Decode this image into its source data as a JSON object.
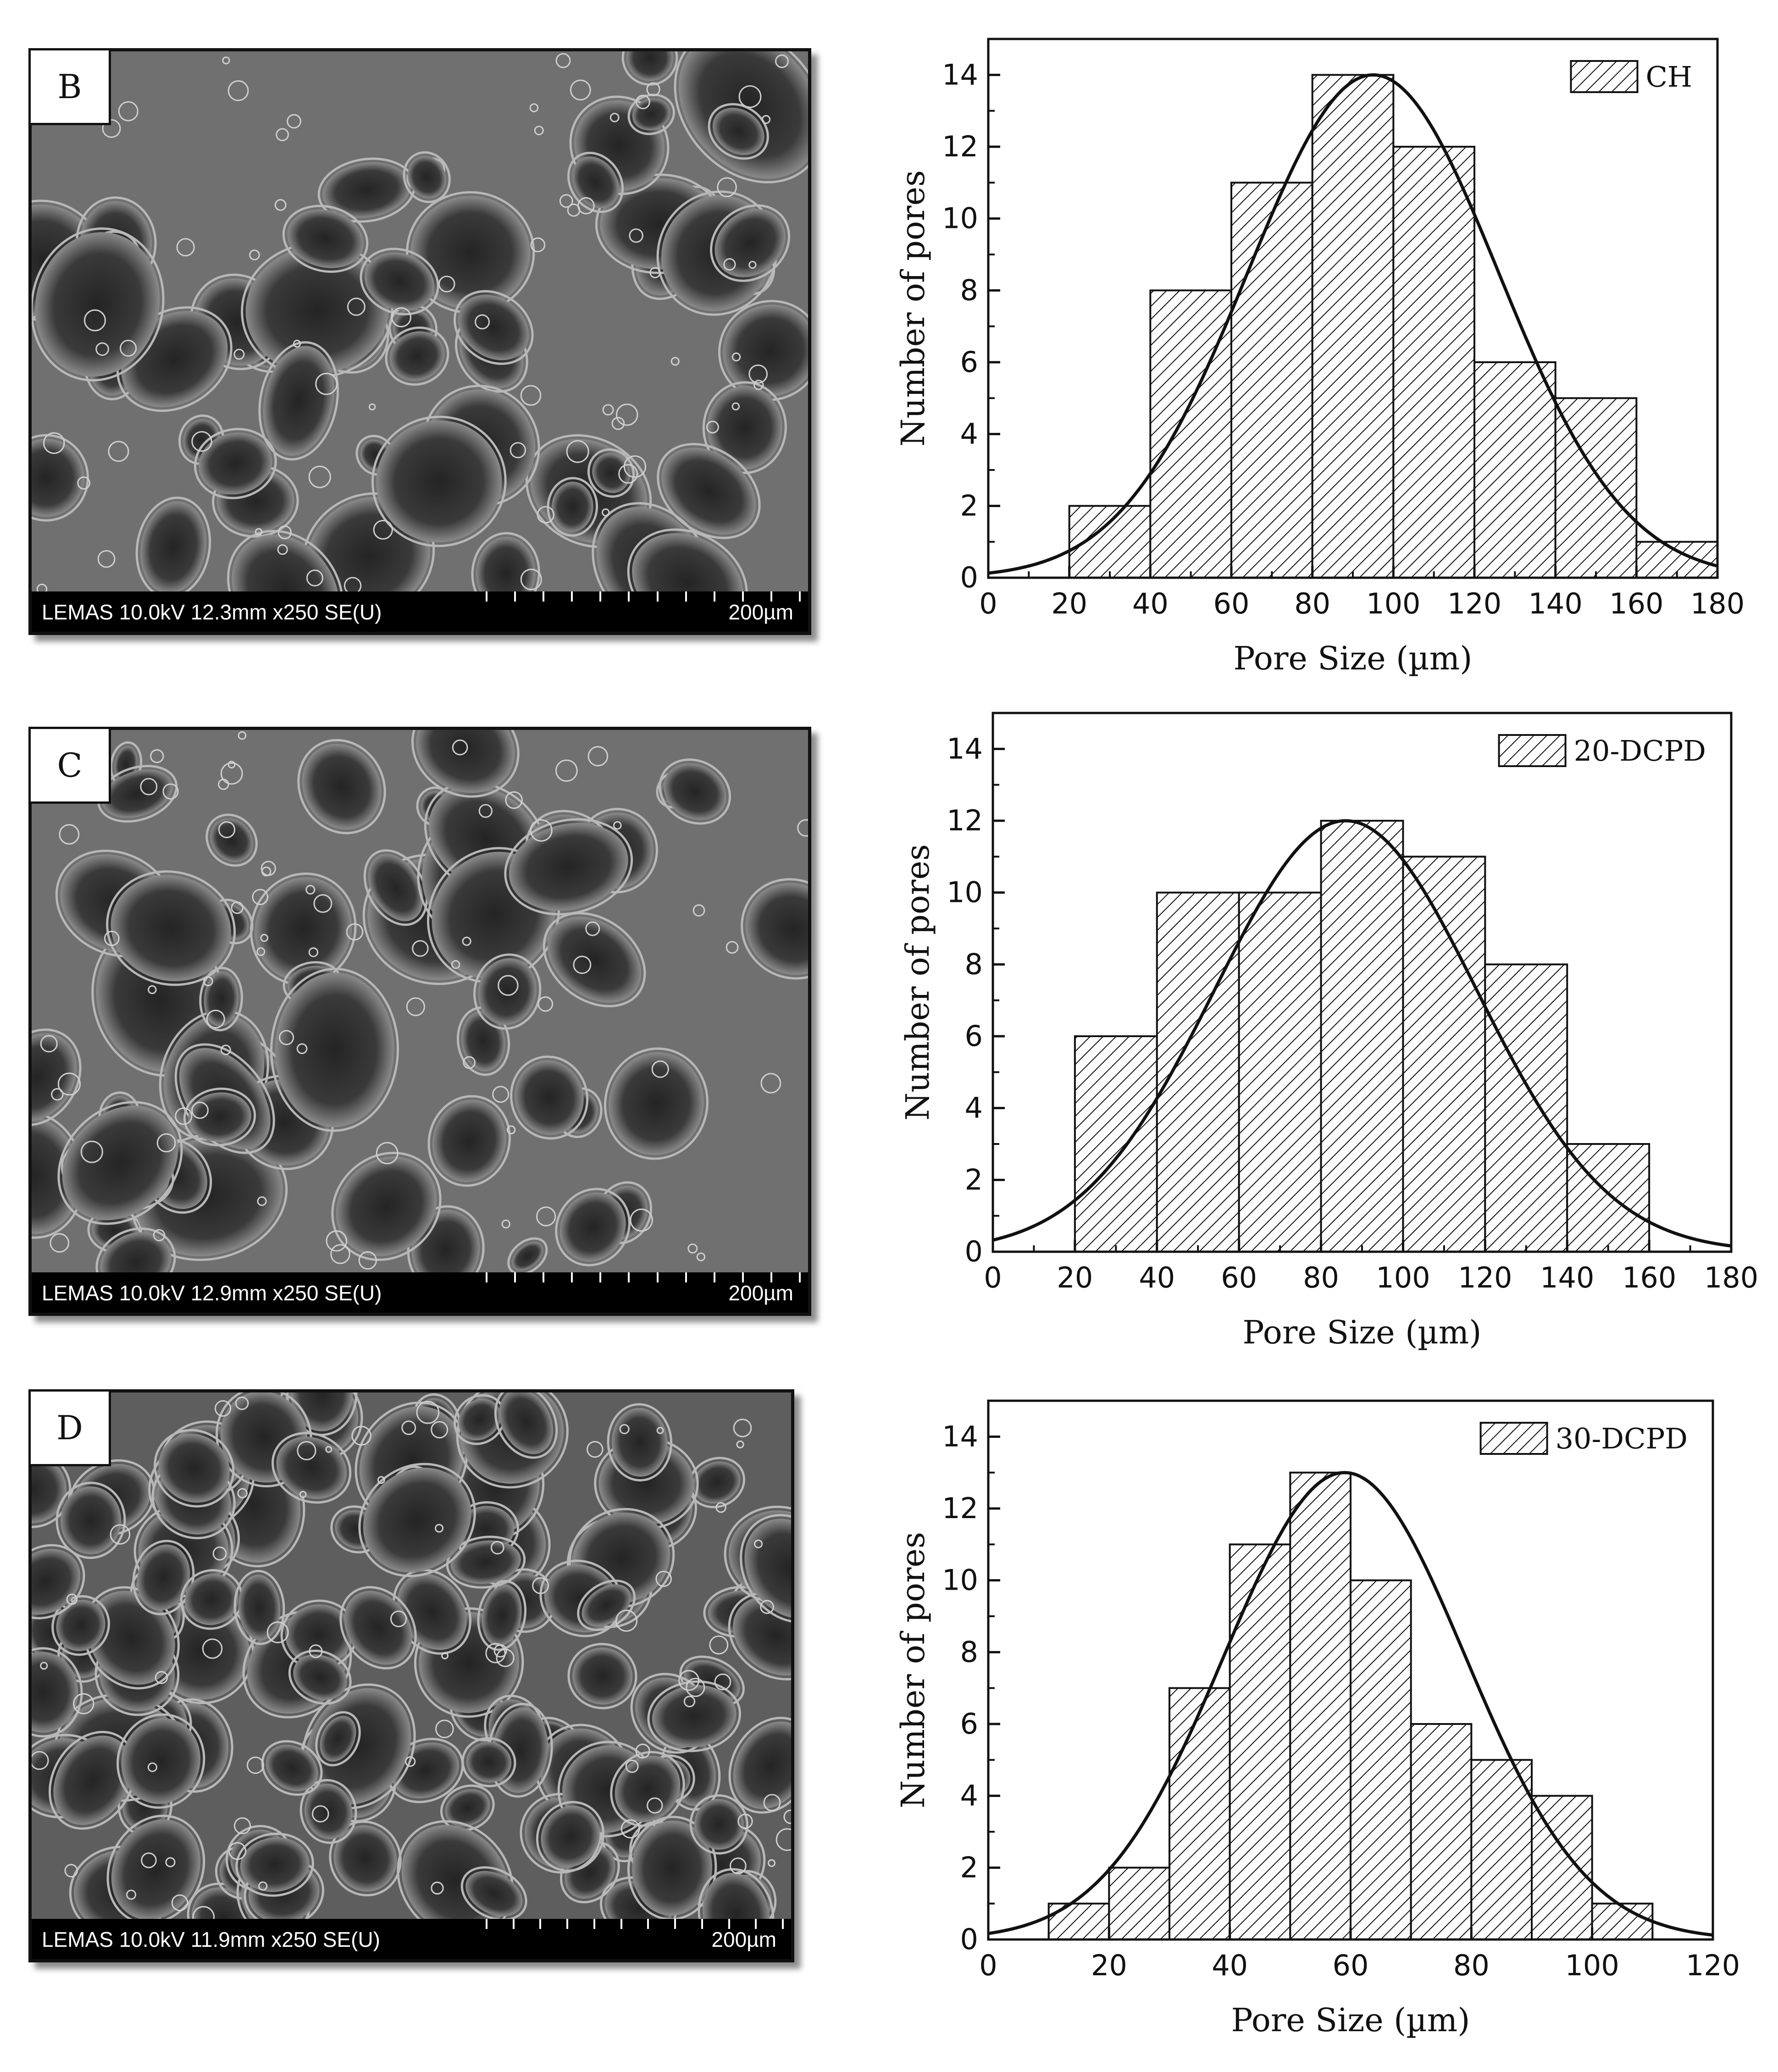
{
  "panels": [
    {
      "letter": "B",
      "sem_caption": "LEMAS 10.0kV 12.3mm x250 SE(U)",
      "scale_text": "200µm"
    },
    {
      "letter": "C",
      "sem_caption": "LEMAS 10.0kV 12.9mm x250 SE(U)",
      "scale_text": "200µm"
    },
    {
      "letter": "D",
      "sem_caption": "LEMAS 10.0kV 11.9mm x250 SE(U)",
      "scale_text": "200µm"
    }
  ],
  "chart_data": [
    {
      "type": "bar",
      "legend": "CH",
      "legend_position": "top-right",
      "xlabel": "Pore Size (µm)",
      "ylabel": "Number of pores",
      "xlim": [
        0,
        180
      ],
      "ylim": [
        0,
        15
      ],
      "xticks": [
        0,
        20,
        40,
        60,
        80,
        100,
        120,
        140,
        160,
        180
      ],
      "yticks": [
        0,
        2,
        4,
        6,
        8,
        10,
        12,
        14
      ],
      "bin_edges": [
        20,
        40,
        60,
        80,
        100,
        120,
        140,
        160,
        180
      ],
      "values": [
        2,
        8,
        11,
        14,
        12,
        6,
        5,
        1
      ],
      "fit": {
        "type": "gaussian",
        "peak_x": 95,
        "peak_y": 14,
        "sigma": 31
      },
      "grid": false
    },
    {
      "type": "bar",
      "legend": "20-DCPD",
      "legend_position": "top-right",
      "xlabel": "Pore Size (µm)",
      "ylabel": "Number of pores",
      "xlim": [
        0,
        180
      ],
      "ylim": [
        0,
        15
      ],
      "xticks": [
        0,
        20,
        40,
        60,
        80,
        100,
        120,
        140,
        160,
        180
      ],
      "yticks": [
        0,
        2,
        4,
        6,
        8,
        10,
        12,
        14
      ],
      "bin_edges": [
        20,
        40,
        60,
        80,
        100,
        120,
        140,
        160
      ],
      "values": [
        6,
        10,
        10,
        12,
        11,
        8,
        3
      ],
      "fit": {
        "type": "gaussian",
        "peak_x": 86,
        "peak_y": 12,
        "sigma": 32
      },
      "grid": false
    },
    {
      "type": "bar",
      "legend": "30-DCPD",
      "legend_position": "top-right",
      "xlabel": "Pore Size (µm)",
      "ylabel": "Number of pores",
      "xlim": [
        0,
        120
      ],
      "ylim": [
        0,
        15
      ],
      "xticks": [
        0,
        20,
        40,
        60,
        80,
        100,
        120
      ],
      "yticks": [
        0,
        2,
        4,
        6,
        8,
        10,
        12,
        14
      ],
      "bin_edges": [
        10,
        20,
        30,
        40,
        50,
        60,
        70,
        80,
        90,
        100,
        110
      ],
      "values": [
        1,
        2,
        7,
        11,
        13,
        10,
        6,
        5,
        4,
        1
      ],
      "fit": {
        "type": "gaussian",
        "peak_x": 59,
        "peak_y": 13,
        "sigma": 20
      },
      "grid": false
    }
  ]
}
